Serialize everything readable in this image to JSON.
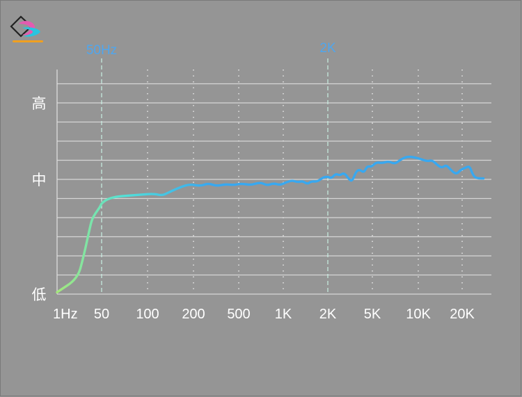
{
  "logo": {
    "icon": "brand-logo-icon",
    "colors": [
      "#2a2a2a",
      "#e45bb0",
      "#29c4e0",
      "#f0a020"
    ]
  },
  "chart_data": {
    "type": "line",
    "title": "",
    "xlabel": "",
    "ylabel": "",
    "x_scale": "log",
    "x_ticks": [
      "1Hz",
      "50",
      "100",
      "200",
      "500",
      "1K",
      "2K",
      "5K",
      "10K",
      "20K"
    ],
    "x_tick_values": [
      1,
      50,
      100,
      200,
      500,
      1000,
      2000,
      5000,
      10000,
      20000
    ],
    "y_ticks": [
      "低",
      "中",
      "高"
    ],
    "y_tick_values": [
      0,
      6,
      10
    ],
    "ylim": [
      0,
      10
    ],
    "grid": true,
    "markers": [
      {
        "label": "50Hz",
        "x": 50
      },
      {
        "label": "2K",
        "x": 2000
      }
    ],
    "series": [
      {
        "colors": {
          "low": "#a6e87a",
          "mid": "#52e0d8",
          "high": "#38a8f0"
        },
        "points": [
          [
            1,
            0.1
          ],
          [
            6,
            0.8
          ],
          [
            10,
            1.9
          ],
          [
            18,
            3.5
          ],
          [
            22,
            3.95
          ],
          [
            30,
            4.25
          ],
          [
            38,
            4.45
          ],
          [
            45,
            4.6
          ],
          [
            50,
            4.75
          ],
          [
            54,
            4.95
          ],
          [
            62,
            5.1
          ],
          [
            75,
            5.15
          ],
          [
            90,
            5.2
          ],
          [
            110,
            5.25
          ],
          [
            125,
            5.15
          ],
          [
            140,
            5.35
          ],
          [
            165,
            5.6
          ],
          [
            190,
            5.75
          ],
          [
            230,
            5.65
          ],
          [
            270,
            5.8
          ],
          [
            320,
            5.65
          ],
          [
            380,
            5.75
          ],
          [
            450,
            5.7
          ],
          [
            520,
            5.78
          ],
          [
            600,
            5.7
          ],
          [
            700,
            5.85
          ],
          [
            780,
            5.68
          ],
          [
            860,
            5.8
          ],
          [
            950,
            5.7
          ],
          [
            1050,
            5.85
          ],
          [
            1150,
            5.95
          ],
          [
            1250,
            5.85
          ],
          [
            1350,
            5.92
          ],
          [
            1450,
            5.75
          ],
          [
            1550,
            5.9
          ],
          [
            1700,
            5.88
          ],
          [
            1850,
            6.1
          ],
          [
            2000,
            6.15
          ],
          [
            2150,
            6.05
          ],
          [
            2350,
            6.3
          ],
          [
            2550,
            6.2
          ],
          [
            2800,
            6.35
          ],
          [
            3100,
            6.0
          ],
          [
            3300,
            5.9
          ],
          [
            3600,
            6.45
          ],
          [
            3900,
            6.5
          ],
          [
            4200,
            6.35
          ],
          [
            4500,
            6.7
          ],
          [
            4900,
            6.65
          ],
          [
            5300,
            6.9
          ],
          [
            5800,
            6.85
          ],
          [
            6400,
            6.95
          ],
          [
            7000,
            6.8
          ],
          [
            7700,
            7.05
          ],
          [
            8500,
            7.2
          ],
          [
            9500,
            7.15
          ],
          [
            10500,
            7.05
          ],
          [
            11500,
            6.95
          ],
          [
            12500,
            7.0
          ],
          [
            13500,
            6.75
          ],
          [
            14500,
            6.6
          ],
          [
            15500,
            6.75
          ],
          [
            16500,
            6.55
          ],
          [
            17500,
            6.35
          ],
          [
            18500,
            6.3
          ],
          [
            19500,
            6.5
          ],
          [
            21000,
            6.6
          ],
          [
            22500,
            6.7
          ],
          [
            23500,
            6.3
          ],
          [
            24500,
            6.1
          ],
          [
            26000,
            6.05
          ],
          [
            28000,
            6.05
          ]
        ]
      }
    ]
  }
}
